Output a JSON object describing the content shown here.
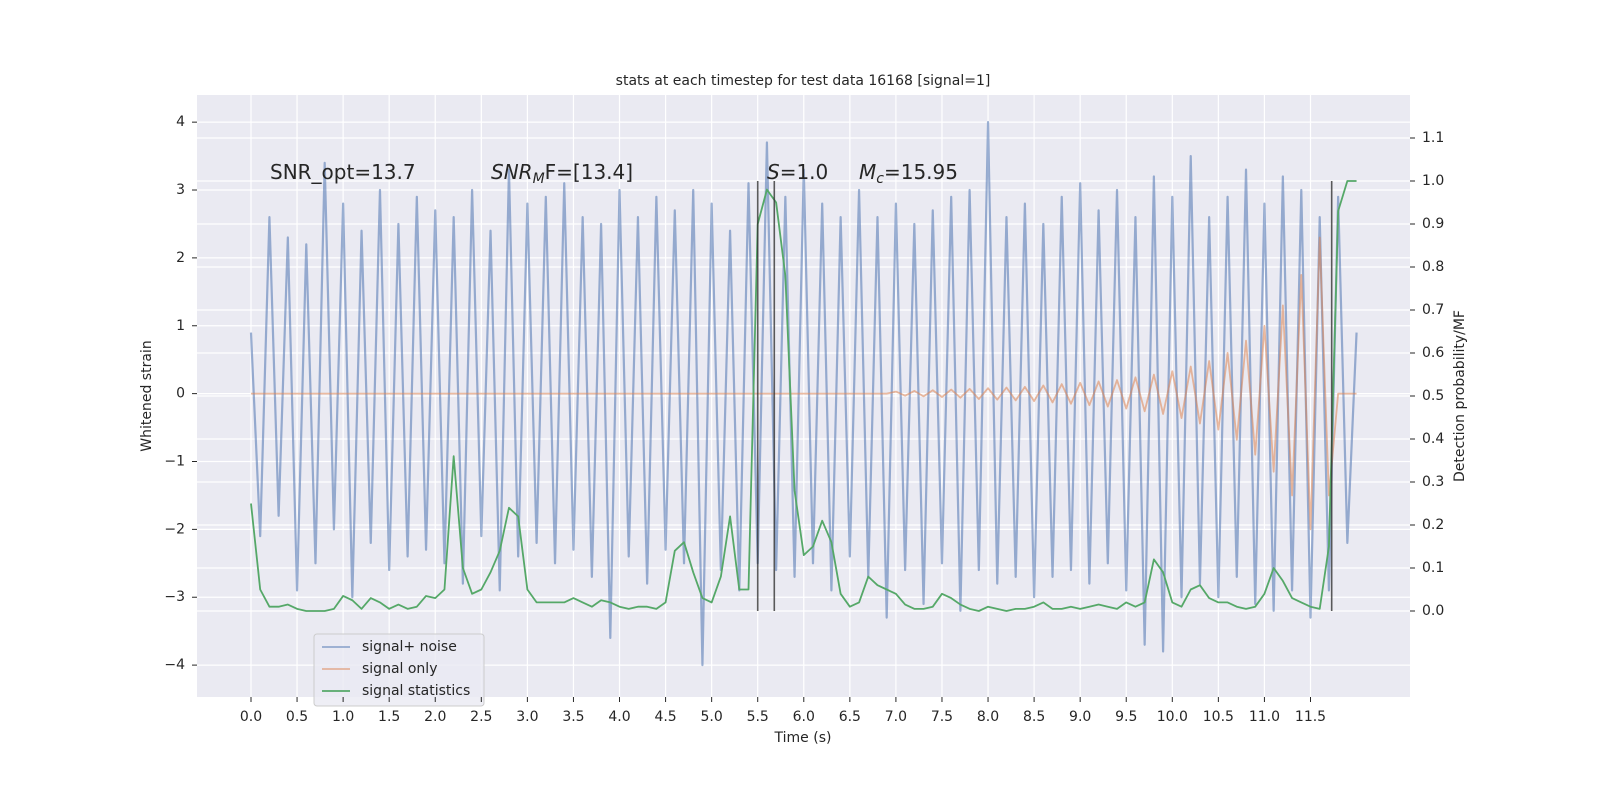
{
  "chart_data": {
    "type": "line",
    "title": "stats at each timestep for test data 16168 [signal=1]",
    "x_label": "Time (s)",
    "y_label": "Whitened strain",
    "y2_label": "Detection probability/MF",
    "xlim": [
      -0.586,
      12.58
    ],
    "ylim": [
      -4.47,
      4.4
    ],
    "y2lim": [
      -0.2,
      1.2
    ],
    "grid": true,
    "legend": "lower left",
    "xticks": [
      {
        "value": 0,
        "label": "0.0"
      },
      {
        "value": 0.5,
        "label": "0.5"
      },
      {
        "value": 1,
        "label": "1.0"
      },
      {
        "value": 1.5,
        "label": "1.5"
      },
      {
        "value": 2,
        "label": "2.0"
      },
      {
        "value": 2.5,
        "label": "2.5"
      },
      {
        "value": 3,
        "label": "3.0"
      },
      {
        "value": 3.5,
        "label": "3.5"
      },
      {
        "value": 4,
        "label": "4.0"
      },
      {
        "value": 4.5,
        "label": "4.5"
      },
      {
        "value": 5,
        "label": "5.0"
      },
      {
        "value": 5.5,
        "label": "5.5"
      },
      {
        "value": 6,
        "label": "6.0"
      },
      {
        "value": 6.5,
        "label": "6.5"
      },
      {
        "value": 7,
        "label": "7.0"
      },
      {
        "value": 7.5,
        "label": "7.5"
      },
      {
        "value": 8,
        "label": "8.0"
      },
      {
        "value": 8.5,
        "label": "8.5"
      },
      {
        "value": 9,
        "label": "9.0"
      },
      {
        "value": 9.5,
        "label": "9.5"
      },
      {
        "value": 10,
        "label": "10.0"
      },
      {
        "value": 10.5,
        "label": "10.5"
      },
      {
        "value": 11,
        "label": "11.0"
      },
      {
        "value": 11.5,
        "label": "11.5"
      }
    ],
    "yticks": [
      {
        "value": -4,
        "label": "−4"
      },
      {
        "value": -3,
        "label": "−3"
      },
      {
        "value": -2,
        "label": "−2"
      },
      {
        "value": -1,
        "label": "−1"
      },
      0,
      1,
      2,
      3,
      4
    ],
    "y2ticks": [
      {
        "value": 0,
        "label": "0.0"
      },
      {
        "value": 0.1,
        "label": "0.1"
      },
      {
        "value": 0.2,
        "label": "0.2"
      },
      {
        "value": 0.3,
        "label": "0.3"
      },
      {
        "value": 0.4,
        "label": "0.4"
      },
      {
        "value": 0.5,
        "label": "0.5"
      },
      {
        "value": 0.6,
        "label": "0.6"
      },
      {
        "value": 0.7,
        "label": "0.7"
      },
      {
        "value": 0.8,
        "label": "0.8"
      },
      {
        "value": 0.9,
        "label": "0.9"
      },
      {
        "value": 1,
        "label": "1.0"
      },
      {
        "value": 1.1,
        "label": "1.1"
      }
    ],
    "x": [
      0,
      0.1,
      0.2,
      0.3,
      0.4,
      0.5,
      0.6,
      0.7,
      0.8,
      0.9,
      1,
      1.1,
      1.2,
      1.3,
      1.4,
      1.5,
      1.6,
      1.7,
      1.8,
      1.9,
      2,
      2.1,
      2.2,
      2.3,
      2.4,
      2.5,
      2.6,
      2.7,
      2.8,
      2.9,
      3,
      3.1,
      3.2,
      3.3,
      3.4,
      3.5,
      3.6,
      3.7,
      3.8,
      3.9,
      4,
      4.1,
      4.2,
      4.3,
      4.4,
      4.5,
      4.6,
      4.7,
      4.8,
      4.9,
      5,
      5.1,
      5.2,
      5.3,
      5.4,
      5.5,
      5.6,
      5.7,
      5.8,
      5.9,
      6,
      6.1,
      6.2,
      6.3,
      6.4,
      6.5,
      6.6,
      6.7,
      6.8,
      6.9,
      7,
      7.1,
      7.2,
      7.3,
      7.4,
      7.5,
      7.6,
      7.7,
      7.8,
      7.9,
      8,
      8.1,
      8.2,
      8.3,
      8.4,
      8.5,
      8.6,
      8.7,
      8.8,
      8.9,
      9,
      9.1,
      9.2,
      9.3,
      9.4,
      9.5,
      9.6,
      9.7,
      9.8,
      9.9,
      10,
      10.1,
      10.2,
      10.3,
      10.4,
      10.5,
      10.6,
      10.7,
      10.8,
      10.9,
      11,
      11.1,
      11.2,
      11.3,
      11.4,
      11.5,
      11.6,
      11.7,
      11.8,
      11.9,
      12
    ],
    "series": [
      {
        "name": "signal+ noise",
        "color": "#4c72b0",
        "values": [
          0.9,
          -2.1,
          2.6,
          -1.8,
          2.3,
          -2.9,
          2.2,
          -2.5,
          3.4,
          -2.0,
          2.8,
          -3.0,
          2.4,
          -2.2,
          3.0,
          -2.6,
          2.5,
          -2.4,
          2.9,
          -2.3,
          2.7,
          -2.5,
          2.6,
          -2.8,
          3.0,
          -2.1,
          2.4,
          -2.9,
          3.3,
          -2.4,
          2.8,
          -2.2,
          2.9,
          -2.5,
          3.1,
          -2.3,
          2.6,
          -2.7,
          2.5,
          -3.6,
          3.0,
          -2.4,
          2.6,
          -2.8,
          2.9,
          -2.3,
          2.7,
          -2.5,
          3.0,
          -4.0,
          2.8,
          -2.6,
          2.4,
          -2.9,
          3.1,
          -2.5,
          3.7,
          -2.6,
          2.9,
          -2.7,
          3.3,
          -2.5,
          2.8,
          -2.9,
          2.6,
          -2.4,
          3.0,
          -2.7,
          2.6,
          -3.3,
          2.8,
          -2.6,
          2.5,
          -3.1,
          2.7,
          -2.5,
          2.9,
          -3.2,
          3.0,
          -2.6,
          4.0,
          -2.8,
          2.6,
          -2.7,
          2.8,
          -3.0,
          2.5,
          -2.7,
          2.9,
          -2.6,
          3.1,
          -2.8,
          2.7,
          -2.5,
          3.0,
          -2.9,
          2.6,
          -3.7,
          3.2,
          -3.8,
          2.9,
          -3.0,
          3.5,
          -2.8,
          2.6,
          -3.0,
          2.9,
          -2.7,
          3.3,
          -3.1,
          2.8,
          -3.2,
          3.2,
          -2.9,
          3.0,
          -3.3,
          2.6,
          -2.9,
          2.9,
          -2.2,
          0.9
        ]
      },
      {
        "name": "signal only",
        "color": "#dd8452",
        "values": [
          0,
          0,
          0,
          0,
          0,
          0,
          0,
          0,
          0,
          0,
          0,
          0,
          0,
          0,
          0,
          0,
          0,
          0,
          0,
          0,
          0,
          0,
          0,
          0,
          0,
          0,
          0,
          0,
          0,
          0,
          0,
          0,
          0,
          0,
          0,
          0,
          0,
          0,
          0,
          0,
          0,
          0,
          0,
          0,
          0,
          0,
          0,
          0,
          0,
          0,
          0,
          0,
          0,
          0,
          0,
          0,
          0,
          0,
          0,
          0,
          0,
          0,
          0,
          0,
          0,
          0,
          0,
          0,
          0,
          0,
          0.03,
          -0.03,
          0.04,
          -0.04,
          0.05,
          -0.05,
          0.06,
          -0.06,
          0.07,
          -0.08,
          0.08,
          -0.09,
          0.09,
          -0.1,
          0.1,
          -0.11,
          0.12,
          -0.13,
          0.14,
          -0.15,
          0.16,
          -0.17,
          0.18,
          -0.19,
          0.2,
          -0.22,
          0.24,
          -0.26,
          0.28,
          -0.3,
          0.33,
          -0.36,
          0.4,
          -0.44,
          0.48,
          -0.53,
          0.6,
          -0.68,
          0.78,
          -0.9,
          1.0,
          -1.15,
          1.3,
          -1.5,
          1.75,
          -2.0,
          2.3,
          -1.5,
          0,
          0,
          0
        ]
      },
      {
        "name": "signal statistics",
        "color": "#55a868",
        "axis": "y2",
        "values": [
          0.25,
          0.05,
          0.01,
          0.01,
          0.015,
          0.005,
          0,
          0,
          0,
          0.005,
          0.035,
          0.025,
          0.005,
          0.03,
          0.02,
          0.005,
          0.015,
          0.005,
          0.01,
          0.035,
          0.03,
          0.05,
          0.36,
          0.1,
          0.04,
          0.05,
          0.09,
          0.14,
          0.24,
          0.22,
          0.05,
          0.02,
          0.02,
          0.02,
          0.02,
          0.03,
          0.02,
          0.01,
          0.025,
          0.02,
          0.01,
          0.005,
          0.01,
          0.01,
          0.005,
          0.02,
          0.14,
          0.16,
          0.09,
          0.03,
          0.02,
          0.08,
          0.22,
          0.05,
          0.05,
          0.9,
          0.98,
          0.95,
          0.78,
          0.28,
          0.13,
          0.15,
          0.21,
          0.16,
          0.04,
          0.01,
          0.02,
          0.08,
          0.06,
          0.05,
          0.04,
          0.015,
          0.005,
          0.005,
          0.01,
          0.04,
          0.03,
          0.015,
          0.005,
          0,
          0.01,
          0.005,
          0,
          0.005,
          0.005,
          0.01,
          0.02,
          0.005,
          0.005,
          0.01,
          0.005,
          0.01,
          0.015,
          0.01,
          0.005,
          0.02,
          0.01,
          0.02,
          0.12,
          0.09,
          0.02,
          0.01,
          0.05,
          0.06,
          0.03,
          0.02,
          0.02,
          0.01,
          0.005,
          0.01,
          0.04,
          0.1,
          0.07,
          0.03,
          0.02,
          0.01,
          0.005,
          0.15,
          0.93,
          1.0,
          1.0
        ]
      }
    ],
    "vlines": [
      5.5,
      5.68,
      11.73
    ],
    "vline_range": [
      0,
      1
    ],
    "annotations": [
      {
        "main": "SNR_opt=13.7"
      },
      {
        "main": "SNR",
        "sub": "M",
        "rest": "F=[13.4]"
      },
      {
        "main": "S",
        "rest": "=1.0"
      },
      {
        "main": "M",
        "sub": "c",
        "rest": "=15.95"
      }
    ]
  }
}
